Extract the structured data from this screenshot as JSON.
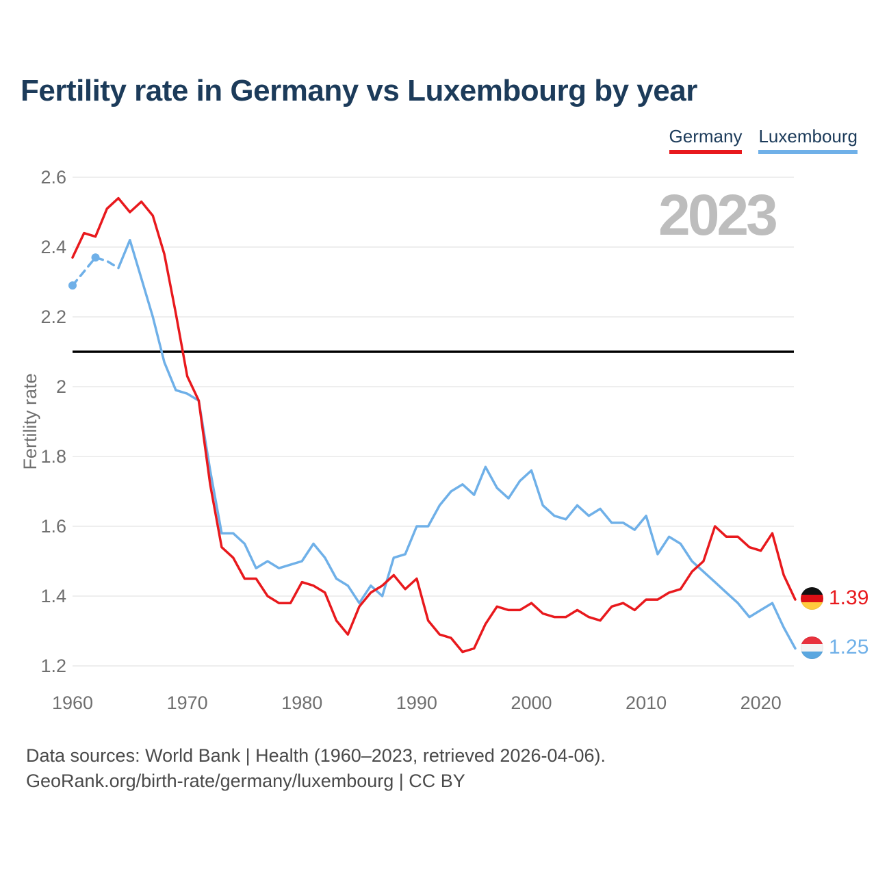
{
  "title": "Fertility rate in Germany vs Luxembourg by year",
  "watermark_year": "2023",
  "colors": {
    "title_text": "#1c3b5a",
    "axis_text": "#6f6f6f",
    "grid": "#e8e8e8",
    "reference_line": "#000000",
    "watermark": "#bdbdbd",
    "footer_text": "#4a4a4a",
    "germany": "#e8191d",
    "luxembourg": "#6fb0e8"
  },
  "footer": {
    "line1": "Data sources: World Bank | Health (1960–2023, retrieved 2026-04-06).",
    "line2": "GeoRank.org/birth-rate/germany/luxembourg | CC BY"
  },
  "chart_data": {
    "type": "line",
    "title": "Fertility rate in Germany vs Luxembourg by year",
    "xlabel": "",
    "ylabel": "Fertility rate",
    "ylim": [
      1.2,
      2.6
    ],
    "x_range": [
      1960,
      2023
    ],
    "grid": true,
    "legend_position": "top-right",
    "watermark": "2023",
    "yticks": [
      {
        "value": 2.6,
        "label": "2.6"
      },
      {
        "value": 2.4,
        "label": "2.4"
      },
      {
        "value": 2.2,
        "label": "2.2"
      },
      {
        "value": 2.0,
        "label": "2"
      },
      {
        "value": 1.8,
        "label": "1.8"
      },
      {
        "value": 1.6,
        "label": "1.6"
      },
      {
        "value": 1.4,
        "label": "1.4"
      },
      {
        "value": 1.2,
        "label": "1.2"
      }
    ],
    "xticks": [
      1960,
      1970,
      1980,
      1990,
      2000,
      2010,
      2020
    ],
    "reference_line": {
      "value": 2.1,
      "color": "#000000"
    },
    "years": [
      1960,
      1961,
      1962,
      1963,
      1964,
      1965,
      1966,
      1967,
      1968,
      1969,
      1970,
      1971,
      1972,
      1973,
      1974,
      1975,
      1976,
      1977,
      1978,
      1979,
      1980,
      1981,
      1982,
      1983,
      1984,
      1985,
      1986,
      1987,
      1988,
      1989,
      1990,
      1991,
      1992,
      1993,
      1994,
      1995,
      1996,
      1997,
      1998,
      1999,
      2000,
      2001,
      2002,
      2003,
      2004,
      2005,
      2006,
      2007,
      2008,
      2009,
      2010,
      2011,
      2012,
      2013,
      2014,
      2015,
      2016,
      2017,
      2018,
      2019,
      2020,
      2021,
      2022,
      2023
    ],
    "series": [
      {
        "name": "Germany",
        "color": "#e8191d",
        "stroke_width": 3.5,
        "end_label": "1.39",
        "flag_icon": "germany-flag-icon",
        "flag_colors": [
          "#111111",
          "#dd0f15",
          "#ffcb3d"
        ],
        "values": [
          2.37,
          2.44,
          2.43,
          2.51,
          2.54,
          2.5,
          2.53,
          2.49,
          2.38,
          2.21,
          2.03,
          1.96,
          1.72,
          1.54,
          1.51,
          1.45,
          1.45,
          1.4,
          1.38,
          1.38,
          1.44,
          1.43,
          1.41,
          1.33,
          1.29,
          1.37,
          1.41,
          1.43,
          1.46,
          1.42,
          1.45,
          1.33,
          1.29,
          1.28,
          1.24,
          1.25,
          1.32,
          1.37,
          1.36,
          1.36,
          1.38,
          1.35,
          1.34,
          1.34,
          1.36,
          1.34,
          1.33,
          1.37,
          1.38,
          1.36,
          1.39,
          1.39,
          1.41,
          1.42,
          1.47,
          1.5,
          1.6,
          1.57,
          1.57,
          1.54,
          1.53,
          1.58,
          1.46,
          1.39
        ]
      },
      {
        "name": "Luxembourg",
        "color": "#6fb0e8",
        "stroke_width": 3.5,
        "end_label": "1.25",
        "flag_icon": "luxembourg-flag-icon",
        "flag_colors": [
          "#e8323e",
          "#f4f4f4",
          "#5aa7e0"
        ],
        "dashed_until_year": 1964,
        "marker_years": [
          1960,
          1962
        ],
        "interpolated_years": [
          1961,
          1963
        ],
        "values": [
          2.29,
          2.33,
          2.37,
          2.36,
          2.34,
          2.42,
          2.31,
          2.2,
          2.07,
          1.99,
          1.98,
          1.96,
          1.76,
          1.58,
          1.58,
          1.55,
          1.48,
          1.5,
          1.48,
          1.49,
          1.5,
          1.55,
          1.51,
          1.45,
          1.43,
          1.38,
          1.43,
          1.4,
          1.51,
          1.52,
          1.6,
          1.6,
          1.66,
          1.7,
          1.72,
          1.69,
          1.77,
          1.71,
          1.68,
          1.73,
          1.76,
          1.66,
          1.63,
          1.62,
          1.66,
          1.63,
          1.65,
          1.61,
          1.61,
          1.59,
          1.63,
          1.52,
          1.57,
          1.55,
          1.5,
          1.47,
          1.44,
          1.41,
          1.38,
          1.34,
          1.36,
          1.38,
          1.31,
          1.25
        ]
      }
    ]
  }
}
